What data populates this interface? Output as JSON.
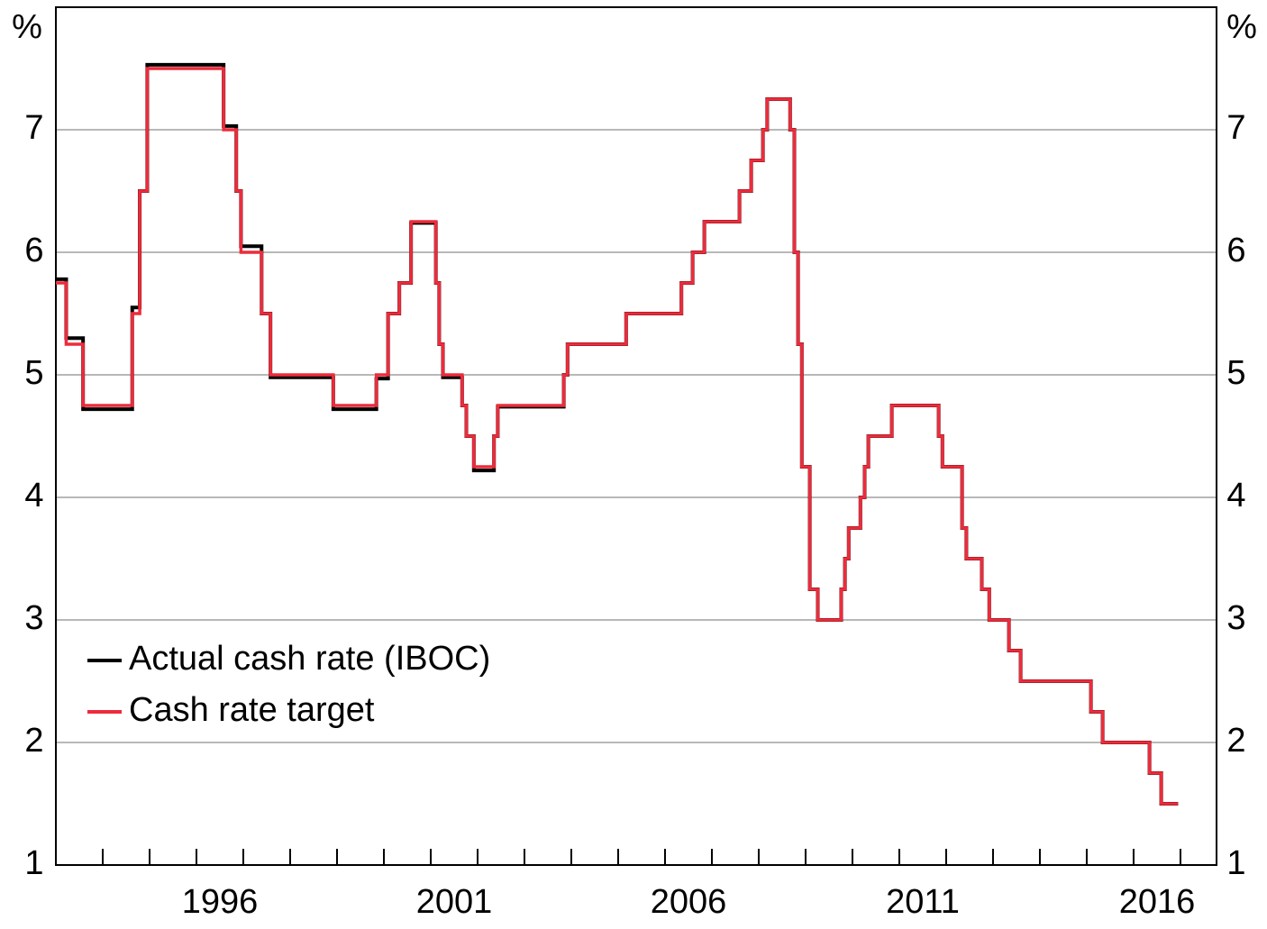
{
  "chart_data": {
    "type": "step-line",
    "y_unit_label": "%",
    "x": [
      1993.0,
      1993.22,
      1993.58,
      1994.63,
      1994.79,
      1994.95,
      1996.58,
      1996.85,
      1996.95,
      1997.39,
      1997.58,
      1998.92,
      1999.84,
      2000.09,
      2000.33,
      2000.58,
      2001.11,
      2001.18,
      2001.26,
      2001.67,
      2001.76,
      2001.92,
      2002.35,
      2002.43,
      2003.84,
      2003.92,
      2005.17,
      2006.35,
      2006.59,
      2006.84,
      2007.59,
      2007.84,
      2008.09,
      2008.18,
      2008.67,
      2008.76,
      2008.84,
      2008.92,
      2009.09,
      2009.26,
      2009.76,
      2009.84,
      2009.92,
      2010.17,
      2010.26,
      2010.34,
      2010.84,
      2011.84,
      2011.92,
      2012.34,
      2012.43,
      2012.76,
      2012.92,
      2013.34,
      2013.59,
      2015.09,
      2015.34,
      2016.34,
      2016.59,
      2016.95
    ],
    "series": [
      {
        "name": "Actual cash rate (IBOC)",
        "color": "#000000",
        "values": [
          5.78,
          5.3,
          4.72,
          5.55,
          6.5,
          7.53,
          7.03,
          6.5,
          6.05,
          5.5,
          4.98,
          4.72,
          4.97,
          5.5,
          5.75,
          6.24,
          5.75,
          5.25,
          4.98,
          4.75,
          4.5,
          4.22,
          4.5,
          4.74,
          5.0,
          5.25,
          5.5,
          5.75,
          6.0,
          6.25,
          6.5,
          6.75,
          7.0,
          7.25,
          7.0,
          6.0,
          5.25,
          4.25,
          3.25,
          3.0,
          3.25,
          3.5,
          3.75,
          4.0,
          4.25,
          4.5,
          4.75,
          4.5,
          4.25,
          3.75,
          3.5,
          3.25,
          3.0,
          2.75,
          2.5,
          2.25,
          2.0,
          1.75,
          1.5,
          1.5
        ]
      },
      {
        "name": "Cash rate target",
        "color": "#ee2b3b",
        "values": [
          5.75,
          5.25,
          4.75,
          5.5,
          6.5,
          7.5,
          7.0,
          6.5,
          6.0,
          5.5,
          5.0,
          4.75,
          5.0,
          5.5,
          5.75,
          6.25,
          5.75,
          5.25,
          5.0,
          4.75,
          4.5,
          4.25,
          4.5,
          4.75,
          5.0,
          5.25,
          5.5,
          5.75,
          6.0,
          6.25,
          6.5,
          6.75,
          7.0,
          7.25,
          7.0,
          6.0,
          5.25,
          4.25,
          3.25,
          3.0,
          3.25,
          3.5,
          3.75,
          4.0,
          4.25,
          4.5,
          4.75,
          4.5,
          4.25,
          3.75,
          3.5,
          3.25,
          3.0,
          2.75,
          2.5,
          2.25,
          2.0,
          1.75,
          1.5,
          1.5
        ]
      }
    ],
    "xlim": [
      1993.0,
      2017.77
    ],
    "xticks": [
      {
        "value": 1996.5,
        "label": "1996"
      },
      {
        "value": 2001.5,
        "label": "2001"
      },
      {
        "value": 2006.5,
        "label": "2006"
      },
      {
        "value": 2011.5,
        "label": "2011"
      },
      {
        "value": 2016.5,
        "label": "2016"
      }
    ],
    "xtick_marks": [
      1994,
      1995,
      1996,
      1997,
      1998,
      1999,
      2000,
      2001,
      2002,
      2003,
      2004,
      2005,
      2006,
      2007,
      2008,
      2009,
      2010,
      2011,
      2012,
      2013,
      2014,
      2015,
      2016,
      2017
    ],
    "ylim": [
      1,
      8
    ],
    "yticks": [
      1,
      2,
      3,
      4,
      5,
      6,
      7
    ],
    "y2lim": [
      1,
      8
    ],
    "y2ticks": [
      1,
      2,
      3,
      4,
      5,
      6,
      7
    ],
    "grid": true,
    "legend": "lower-left"
  }
}
